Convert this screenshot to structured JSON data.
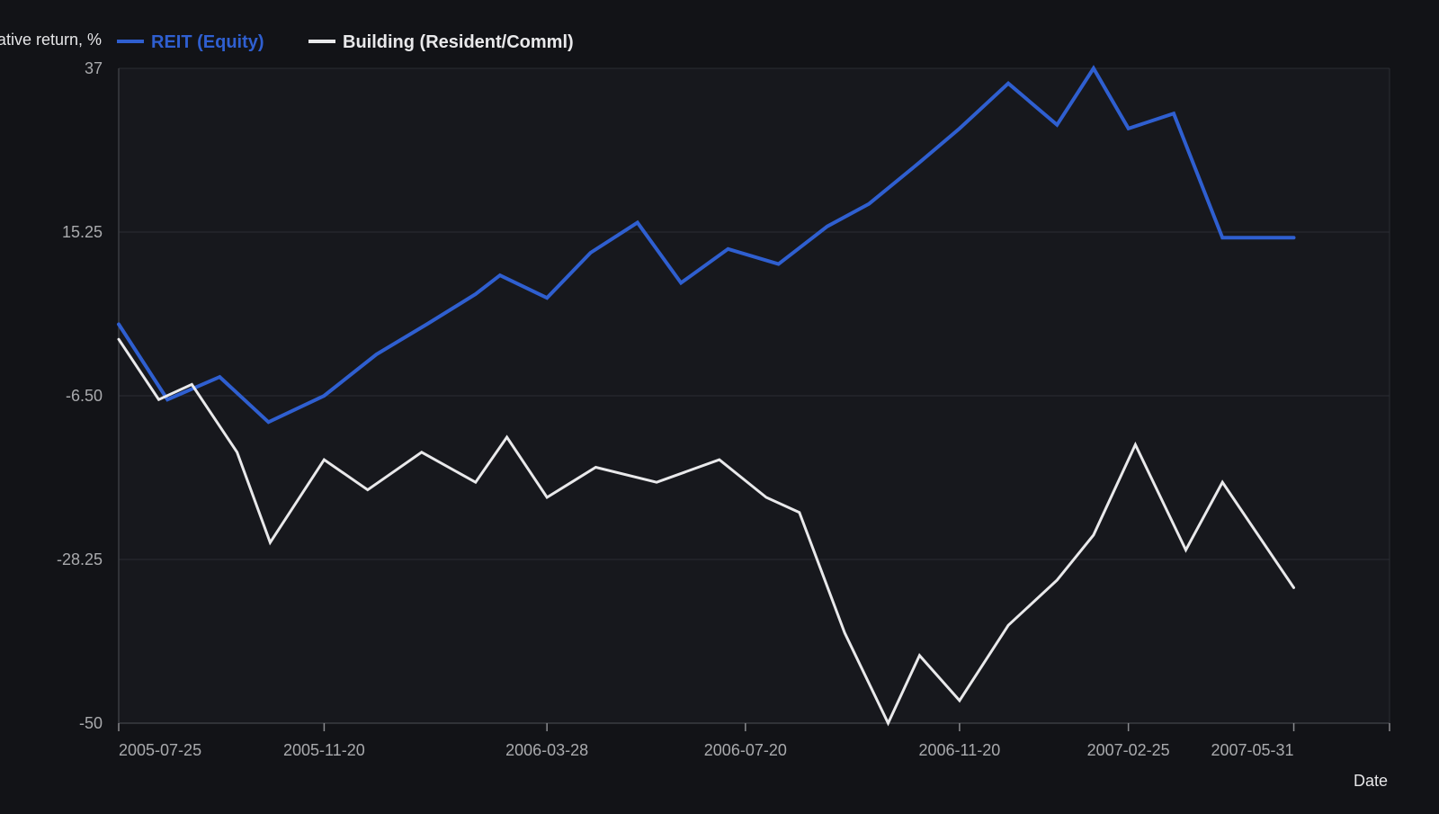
{
  "chart_data": {
    "type": "line",
    "ylabel": "Cumulative return, %",
    "xlabel": "Date",
    "ylim": [
      -50,
      37
    ],
    "yticks": [
      "37",
      "15.25",
      "-6.50",
      "-28.25",
      "-50"
    ],
    "ytick_values": [
      37,
      15.25,
      -6.5,
      -28.25,
      -50
    ],
    "xlim": [
      "2005-07-25",
      "2007-07-25"
    ],
    "xticks": [
      "2005-07-25",
      "2005-11-20",
      "2006-03-28",
      "2006-07-20",
      "2006-11-20",
      "2007-02-25",
      "2007-05-31"
    ],
    "grid": "horizontal",
    "legend_position": "top",
    "series": [
      {
        "name": "REIT (Equity)",
        "color": "#2f5fd0",
        "x": [
          "2005-07-25",
          "2005-08-22",
          "2005-09-21",
          "2005-10-19",
          "2005-11-20",
          "2005-12-20",
          "2006-01-18",
          "2006-02-15",
          "2006-03-01",
          "2006-03-28",
          "2006-04-22",
          "2006-05-19",
          "2006-06-13",
          "2006-07-10",
          "2006-08-08",
          "2006-09-05",
          "2006-09-29",
          "2006-10-28",
          "2006-11-20",
          "2006-12-18",
          "2007-01-15",
          "2007-02-05",
          "2007-02-25",
          "2007-03-23",
          "2007-04-20",
          "2007-05-31"
        ],
        "values": [
          3.0,
          -7.0,
          -4.0,
          -10.0,
          -6.5,
          -1.0,
          3.0,
          7.0,
          9.5,
          6.5,
          12.5,
          16.5,
          8.5,
          13.0,
          11.0,
          16.0,
          19.0,
          24.5,
          29.0,
          35.0,
          29.5,
          37.0,
          29.0,
          31.0,
          14.5,
          14.5
        ]
      },
      {
        "name": "Building (Resident/Comml)",
        "color": "#e9e9eb",
        "x": [
          "2005-07-25",
          "2005-08-17",
          "2005-09-05",
          "2005-10-01",
          "2005-10-20",
          "2005-11-20",
          "2005-12-15",
          "2006-01-15",
          "2006-02-15",
          "2006-03-05",
          "2006-03-28",
          "2006-04-25",
          "2006-05-30",
          "2006-07-05",
          "2006-08-01",
          "2006-08-20",
          "2006-09-15",
          "2006-10-10",
          "2006-10-28",
          "2006-11-20",
          "2006-12-18",
          "2007-01-15",
          "2007-02-05",
          "2007-03-01",
          "2007-03-30",
          "2007-04-20",
          "2007-05-31"
        ],
        "values": [
          1.0,
          -7.0,
          -5.0,
          -14.0,
          -26.0,
          -15.0,
          -19.0,
          -14.0,
          -18.0,
          -12.0,
          -20.0,
          -16.0,
          -18.0,
          -15.0,
          -20.0,
          -22.0,
          -38.0,
          -50.0,
          -41.0,
          -47.0,
          -37.0,
          -31.0,
          -25.0,
          -13.0,
          -27.0,
          -18.0,
          -32.0
        ]
      }
    ]
  }
}
